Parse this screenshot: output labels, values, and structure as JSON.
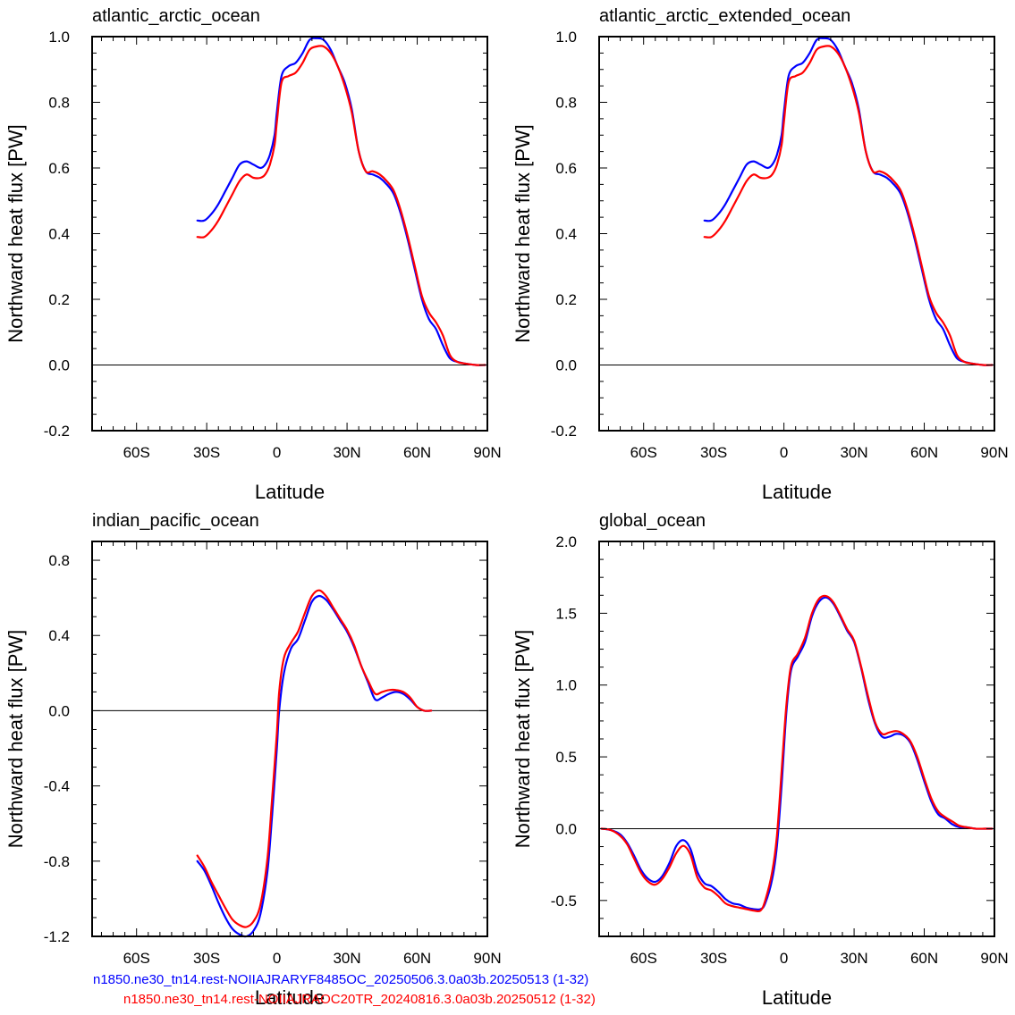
{
  "chart_data": [
    {
      "type": "line",
      "title": "atlantic_arctic_ocean",
      "xlabel": "Latitude",
      "ylabel": "Northward heat flux [PW]",
      "xlim": [
        -79,
        90
      ],
      "ylim": [
        -0.2,
        1.0
      ],
      "xticks": [
        -60,
        -30,
        0,
        30,
        60,
        90
      ],
      "xtick_labels": [
        "60S",
        "30S",
        "0",
        "30N",
        "60N",
        "90N"
      ],
      "yticks": [
        -0.2,
        0.0,
        0.2,
        0.4,
        0.6,
        0.8,
        1.0
      ],
      "ytick_labels": [
        "-0.2",
        "0.0",
        "0.2",
        "0.4",
        "0.6",
        "0.8",
        "1.0"
      ],
      "zero_line": true,
      "series": [
        {
          "color": "#0000ff",
          "x": [
            -34,
            -31,
            -28,
            -25,
            -22,
            -19,
            -16,
            -13,
            -10,
            -7,
            -5,
            -3,
            -1,
            0,
            2,
            5,
            8,
            11,
            14,
            17,
            20,
            23,
            26,
            29,
            32,
            35,
            38,
            41,
            44,
            47,
            50,
            53,
            56,
            59,
            62,
            65,
            68,
            71,
            74,
            77,
            80,
            85,
            89
          ],
          "y": [
            0.44,
            0.44,
            0.46,
            0.49,
            0.53,
            0.57,
            0.61,
            0.62,
            0.61,
            0.6,
            0.61,
            0.64,
            0.7,
            0.77,
            0.88,
            0.91,
            0.92,
            0.95,
            0.99,
            0.995,
            0.99,
            0.96,
            0.91,
            0.86,
            0.78,
            0.65,
            0.59,
            0.58,
            0.57,
            0.55,
            0.52,
            0.46,
            0.38,
            0.29,
            0.2,
            0.14,
            0.11,
            0.06,
            0.02,
            0.01,
            0.005,
            0.0,
            0.0
          ]
        },
        {
          "color": "#ff0000",
          "x": [
            -34,
            -31,
            -28,
            -25,
            -22,
            -19,
            -16,
            -13,
            -10,
            -7,
            -5,
            -3,
            -1,
            0,
            2,
            5,
            8,
            11,
            14,
            17,
            20,
            23,
            26,
            29,
            32,
            35,
            38,
            41,
            44,
            47,
            50,
            53,
            56,
            59,
            62,
            65,
            68,
            71,
            74,
            77,
            80,
            85,
            89
          ],
          "y": [
            0.39,
            0.39,
            0.41,
            0.44,
            0.48,
            0.52,
            0.56,
            0.58,
            0.57,
            0.57,
            0.58,
            0.61,
            0.67,
            0.74,
            0.86,
            0.88,
            0.89,
            0.92,
            0.96,
            0.97,
            0.97,
            0.95,
            0.91,
            0.85,
            0.77,
            0.65,
            0.59,
            0.59,
            0.58,
            0.56,
            0.53,
            0.47,
            0.39,
            0.3,
            0.21,
            0.16,
            0.13,
            0.09,
            0.03,
            0.01,
            0.005,
            0.0,
            0.0
          ]
        }
      ]
    },
    {
      "type": "line",
      "title": "atlantic_arctic_extended_ocean",
      "xlabel": "Latitude",
      "ylabel": "Northward heat flux [PW]",
      "xlim": [
        -79,
        90
      ],
      "ylim": [
        -0.2,
        1.0
      ],
      "xticks": [
        -60,
        -30,
        0,
        30,
        60,
        90
      ],
      "xtick_labels": [
        "60S",
        "30S",
        "0",
        "30N",
        "60N",
        "90N"
      ],
      "yticks": [
        -0.2,
        0.0,
        0.2,
        0.4,
        0.6,
        0.8,
        1.0
      ],
      "ytick_labels": [
        "-0.2",
        "0.0",
        "0.2",
        "0.4",
        "0.6",
        "0.8",
        "1.0"
      ],
      "zero_line": true,
      "series": [
        {
          "color": "#0000ff",
          "x": [
            -34,
            -31,
            -28,
            -25,
            -22,
            -19,
            -16,
            -13,
            -10,
            -7,
            -5,
            -3,
            -1,
            0,
            2,
            5,
            8,
            11,
            14,
            17,
            20,
            23,
            26,
            29,
            32,
            35,
            38,
            41,
            44,
            47,
            50,
            53,
            56,
            59,
            62,
            65,
            68,
            71,
            74,
            77,
            80,
            85,
            89
          ],
          "y": [
            0.44,
            0.44,
            0.46,
            0.49,
            0.53,
            0.57,
            0.61,
            0.62,
            0.61,
            0.6,
            0.61,
            0.64,
            0.7,
            0.77,
            0.88,
            0.91,
            0.92,
            0.95,
            0.99,
            0.995,
            0.99,
            0.96,
            0.91,
            0.86,
            0.78,
            0.65,
            0.59,
            0.58,
            0.57,
            0.55,
            0.52,
            0.46,
            0.38,
            0.29,
            0.2,
            0.14,
            0.11,
            0.06,
            0.02,
            0.01,
            0.005,
            0.0,
            0.0
          ]
        },
        {
          "color": "#ff0000",
          "x": [
            -34,
            -31,
            -28,
            -25,
            -22,
            -19,
            -16,
            -13,
            -10,
            -7,
            -5,
            -3,
            -1,
            0,
            2,
            5,
            8,
            11,
            14,
            17,
            20,
            23,
            26,
            29,
            32,
            35,
            38,
            41,
            44,
            47,
            50,
            53,
            56,
            59,
            62,
            65,
            68,
            71,
            74,
            77,
            80,
            85,
            89
          ],
          "y": [
            0.39,
            0.39,
            0.41,
            0.44,
            0.48,
            0.52,
            0.56,
            0.58,
            0.57,
            0.57,
            0.58,
            0.61,
            0.67,
            0.74,
            0.86,
            0.88,
            0.89,
            0.92,
            0.96,
            0.97,
            0.97,
            0.95,
            0.91,
            0.85,
            0.77,
            0.65,
            0.59,
            0.59,
            0.58,
            0.56,
            0.53,
            0.47,
            0.39,
            0.3,
            0.21,
            0.16,
            0.13,
            0.09,
            0.03,
            0.01,
            0.005,
            0.0,
            0.0
          ]
        }
      ]
    },
    {
      "type": "line",
      "title": "indian_pacific_ocean",
      "xlabel": "Latitude",
      "ylabel": "Northward heat flux [PW]",
      "xlim": [
        -79,
        90
      ],
      "ylim": [
        -1.2,
        0.9
      ],
      "xticks": [
        -60,
        -30,
        0,
        30,
        60,
        90
      ],
      "xtick_labels": [
        "60S",
        "30S",
        "0",
        "30N",
        "60N",
        "90N"
      ],
      "yticks": [
        -1.2,
        -0.8,
        -0.4,
        0.0,
        0.4,
        0.8
      ],
      "ytick_labels": [
        "-1.2",
        "-0.8",
        "-0.4",
        "0.0",
        "0.4",
        "0.8"
      ],
      "zero_line": true,
      "series": [
        {
          "color": "#0000ff",
          "x": [
            -34,
            -31,
            -28,
            -25,
            -22,
            -19,
            -16,
            -13,
            -10,
            -7,
            -4,
            -2,
            0,
            1,
            3,
            6,
            9,
            12,
            15,
            18,
            21,
            24,
            27,
            30,
            33,
            36,
            39,
            42,
            45,
            48,
            51,
            54,
            57,
            60,
            63,
            66
          ],
          "y": [
            -0.8,
            -0.85,
            -0.93,
            -1.02,
            -1.1,
            -1.16,
            -1.19,
            -1.2,
            -1.17,
            -1.08,
            -0.85,
            -0.55,
            -0.2,
            0.0,
            0.2,
            0.33,
            0.38,
            0.48,
            0.58,
            0.61,
            0.59,
            0.54,
            0.48,
            0.42,
            0.34,
            0.24,
            0.15,
            0.06,
            0.07,
            0.09,
            0.1,
            0.09,
            0.06,
            0.02,
            0.0,
            0.0
          ]
        },
        {
          "color": "#ff0000",
          "x": [
            -34,
            -31,
            -28,
            -25,
            -22,
            -19,
            -16,
            -13,
            -10,
            -7,
            -4,
            -2,
            0,
            1,
            3,
            6,
            9,
            12,
            15,
            18,
            21,
            24,
            27,
            30,
            33,
            36,
            39,
            42,
            45,
            48,
            51,
            54,
            57,
            60,
            63,
            66
          ],
          "y": [
            -0.77,
            -0.83,
            -0.91,
            -0.98,
            -1.05,
            -1.11,
            -1.14,
            -1.15,
            -1.12,
            -1.03,
            -0.78,
            -0.46,
            -0.12,
            0.1,
            0.28,
            0.36,
            0.42,
            0.52,
            0.61,
            0.64,
            0.61,
            0.55,
            0.49,
            0.43,
            0.35,
            0.24,
            0.16,
            0.09,
            0.1,
            0.11,
            0.11,
            0.1,
            0.07,
            0.02,
            0.0,
            0.0
          ]
        }
      ]
    },
    {
      "type": "line",
      "title": "global_ocean",
      "xlabel": "Latitude",
      "ylabel": "Northward heat flux [PW]",
      "xlim": [
        -79,
        90
      ],
      "ylim": [
        -0.75,
        2.0
      ],
      "xticks": [
        -60,
        -30,
        0,
        30,
        60,
        90
      ],
      "xtick_labels": [
        "60S",
        "30S",
        "0",
        "30N",
        "60N",
        "90N"
      ],
      "yticks": [
        -0.5,
        0.0,
        0.5,
        1.0,
        1.5,
        2.0
      ],
      "ytick_labels": [
        "-0.5",
        "0.0",
        "0.5",
        "1.0",
        "1.5",
        "2.0"
      ],
      "zero_line": true,
      "series": [
        {
          "color": "#0000ff",
          "x": [
            -78,
            -74,
            -70,
            -67,
            -64,
            -61,
            -58,
            -55,
            -52,
            -49,
            -46,
            -43,
            -40,
            -37,
            -34,
            -31,
            -28,
            -25,
            -22,
            -19,
            -16,
            -13,
            -10,
            -8,
            -5,
            -3,
            -1,
            1,
            3,
            6,
            9,
            12,
            15,
            18,
            21,
            24,
            27,
            30,
            33,
            36,
            39,
            42,
            45,
            48,
            51,
            54,
            57,
            60,
            63,
            66,
            69,
            72,
            75,
            78,
            82,
            86,
            89
          ],
          "y": [
            0.0,
            -0.01,
            -0.04,
            -0.1,
            -0.19,
            -0.29,
            -0.35,
            -0.37,
            -0.33,
            -0.24,
            -0.12,
            -0.08,
            -0.14,
            -0.3,
            -0.38,
            -0.4,
            -0.44,
            -0.49,
            -0.52,
            -0.53,
            -0.55,
            -0.56,
            -0.56,
            -0.52,
            -0.35,
            -0.12,
            0.3,
            0.8,
            1.1,
            1.2,
            1.3,
            1.48,
            1.58,
            1.61,
            1.57,
            1.48,
            1.38,
            1.3,
            1.12,
            0.9,
            0.73,
            0.64,
            0.64,
            0.66,
            0.65,
            0.6,
            0.48,
            0.33,
            0.19,
            0.1,
            0.07,
            0.03,
            0.01,
            0.01,
            0.0,
            0.0,
            0.0
          ]
        },
        {
          "color": "#ff0000",
          "x": [
            -78,
            -74,
            -70,
            -67,
            -64,
            -61,
            -58,
            -55,
            -52,
            -49,
            -46,
            -43,
            -40,
            -37,
            -34,
            -31,
            -28,
            -25,
            -22,
            -19,
            -16,
            -13,
            -10,
            -8,
            -5,
            -3,
            -1,
            1,
            3,
            6,
            9,
            12,
            15,
            18,
            21,
            24,
            27,
            30,
            33,
            36,
            39,
            42,
            45,
            48,
            51,
            54,
            57,
            60,
            63,
            66,
            69,
            72,
            75,
            78,
            82,
            86,
            89
          ],
          "y": [
            0.0,
            -0.01,
            -0.05,
            -0.11,
            -0.21,
            -0.31,
            -0.37,
            -0.39,
            -0.35,
            -0.27,
            -0.17,
            -0.12,
            -0.18,
            -0.34,
            -0.41,
            -0.43,
            -0.47,
            -0.52,
            -0.54,
            -0.55,
            -0.56,
            -0.57,
            -0.57,
            -0.5,
            -0.3,
            -0.05,
            0.4,
            0.85,
            1.13,
            1.22,
            1.33,
            1.5,
            1.6,
            1.62,
            1.58,
            1.49,
            1.39,
            1.31,
            1.13,
            0.92,
            0.74,
            0.66,
            0.67,
            0.68,
            0.66,
            0.61,
            0.5,
            0.35,
            0.21,
            0.12,
            0.08,
            0.05,
            0.02,
            0.01,
            0.0,
            0.0,
            0.0
          ]
        }
      ]
    }
  ],
  "legend": {
    "line1": {
      "text": "n1850.ne30_tn14.rest-NOIIAJRARYF8485OC_20250506.3.0a03b.20250513 (1-32)",
      "color": "#0000ff"
    },
    "line2": {
      "text": "n1850.ne30_tn14.rest-NOIIAJRAOC20TR_20240816.3.0a03b.20250512 (1-32)",
      "color": "#ff0000"
    }
  }
}
